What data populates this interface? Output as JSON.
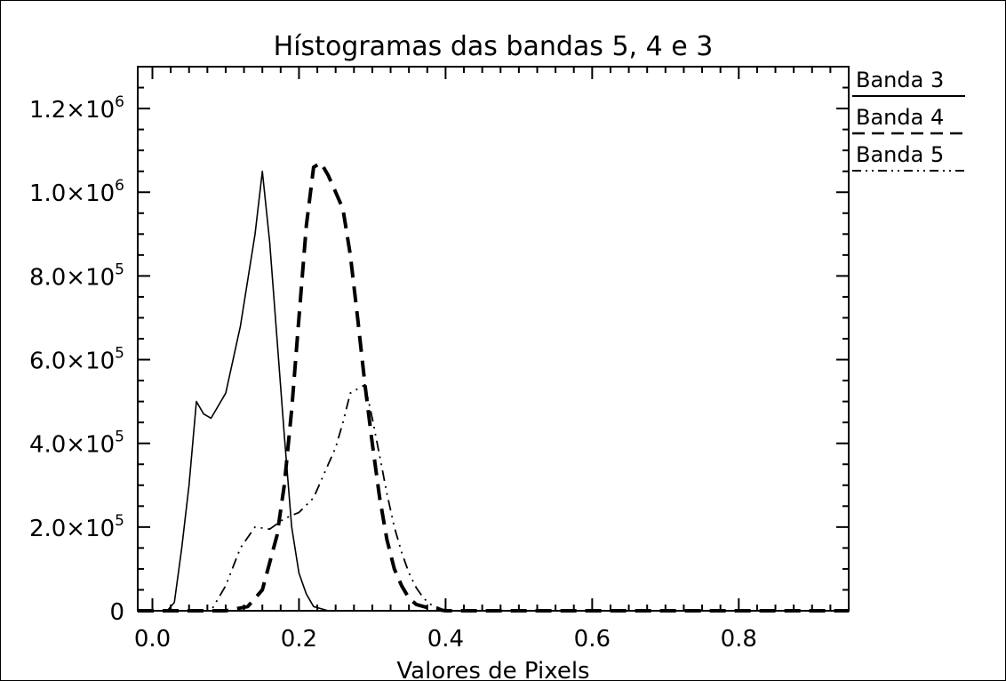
{
  "chart_data": {
    "type": "line",
    "title": "Hístogramas das bandas 5, 4 e 3",
    "xlabel": "Valores de Pixels",
    "ylabel": "",
    "xlim": [
      -0.02,
      0.95
    ],
    "ylim": [
      0,
      1300000
    ],
    "x_ticks": [
      0.0,
      0.2,
      0.4,
      0.6,
      0.8
    ],
    "x_tick_labels": [
      "0.0",
      "0.2",
      "0.4",
      "0.6",
      "0.8"
    ],
    "y_ticks": [
      0,
      200000,
      400000,
      600000,
      800000,
      1000000,
      1200000
    ],
    "y_tick_labels": [
      {
        "mant": "0",
        "exp": ""
      },
      {
        "mant": "2.0×10",
        "exp": "5"
      },
      {
        "mant": "4.0×10",
        "exp": "5"
      },
      {
        "mant": "6.0×10",
        "exp": "5"
      },
      {
        "mant": "8.0×10",
        "exp": "5"
      },
      {
        "mant": "1.0×10",
        "exp": "6"
      },
      {
        "mant": "1.2×10",
        "exp": "6"
      }
    ],
    "grid": false,
    "legend_position": "right of plot, top",
    "series": [
      {
        "name": "Banda 3",
        "line_style": "solid",
        "color": "#000000",
        "x": [
          -0.02,
          0.0,
          0.02,
          0.03,
          0.04,
          0.05,
          0.06,
          0.07,
          0.08,
          0.1,
          0.12,
          0.14,
          0.15,
          0.16,
          0.17,
          0.18,
          0.19,
          0.2,
          0.21,
          0.22,
          0.24,
          0.26,
          0.3,
          0.4,
          0.6,
          0.95
        ],
        "y": [
          0,
          0,
          0,
          20000,
          150000,
          300000,
          500000,
          470000,
          460000,
          520000,
          680000,
          900000,
          1050000,
          880000,
          650000,
          420000,
          200000,
          90000,
          40000,
          10000,
          0,
          0,
          0,
          0,
          0,
          0
        ]
      },
      {
        "name": "Banda 4",
        "line_style": "dashed",
        "color": "#000000",
        "x": [
          -0.02,
          0.1,
          0.13,
          0.15,
          0.17,
          0.18,
          0.19,
          0.2,
          0.21,
          0.22,
          0.23,
          0.24,
          0.25,
          0.26,
          0.27,
          0.28,
          0.29,
          0.3,
          0.31,
          0.32,
          0.33,
          0.34,
          0.35,
          0.36,
          0.38,
          0.4,
          0.5,
          0.7,
          0.95
        ],
        "y": [
          0,
          0,
          10000,
          50000,
          180000,
          300000,
          480000,
          700000,
          920000,
          1060000,
          1070000,
          1040000,
          1000000,
          960000,
          850000,
          700000,
          540000,
          400000,
          270000,
          170000,
          100000,
          60000,
          30000,
          15000,
          5000,
          0,
          0,
          0,
          0
        ]
      },
      {
        "name": "Banda 5",
        "line_style": "dash-dot-dot",
        "color": "#000000",
        "x": [
          -0.02,
          0.08,
          0.1,
          0.12,
          0.14,
          0.16,
          0.18,
          0.2,
          0.22,
          0.24,
          0.25,
          0.26,
          0.27,
          0.28,
          0.29,
          0.3,
          0.31,
          0.32,
          0.33,
          0.34,
          0.35,
          0.36,
          0.37,
          0.38,
          0.4,
          0.5,
          0.7,
          0.95
        ],
        "y": [
          0,
          0,
          60000,
          150000,
          200000,
          195000,
          220000,
          235000,
          270000,
          350000,
          390000,
          450000,
          520000,
          530000,
          540000,
          460000,
          370000,
          280000,
          200000,
          140000,
          90000,
          55000,
          30000,
          15000,
          0,
          0,
          0,
          0
        ]
      }
    ]
  }
}
